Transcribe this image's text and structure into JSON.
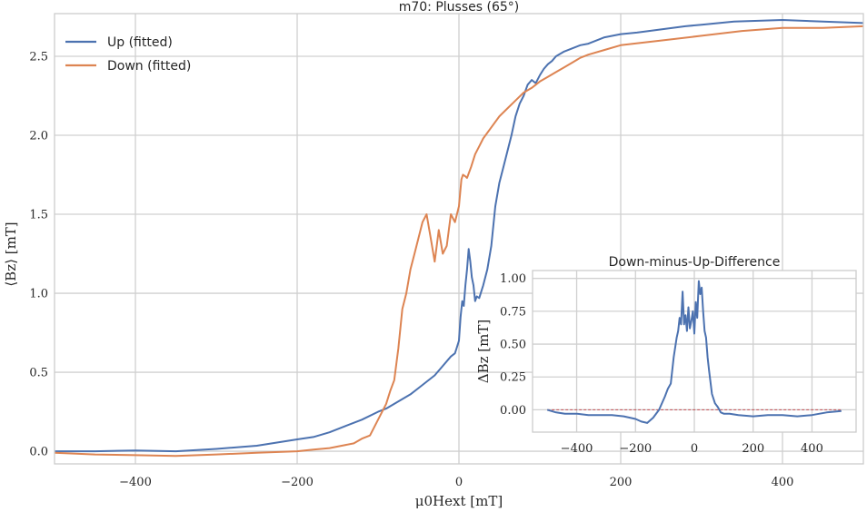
{
  "chart_data": [
    {
      "type": "line",
      "title": "m70: Plusses (65°)",
      "xlabel": "μ0Hext [mT]",
      "ylabel": "⟨Bz⟩ [mT]",
      "xlim": [
        -500,
        500
      ],
      "ylim": [
        -0.08,
        2.77
      ],
      "xticks": [
        -400,
        -200,
        0,
        200,
        400
      ],
      "yticks": [
        0.0,
        0.5,
        1.0,
        1.5,
        2.0,
        2.5
      ],
      "grid": true,
      "legend": "top-left",
      "series": [
        {
          "name": "Up (fitted)",
          "color": "#4c72b0",
          "x": [
            -500,
            -450,
            -400,
            -350,
            -300,
            -250,
            -200,
            -180,
            -160,
            -140,
            -120,
            -100,
            -90,
            -80,
            -70,
            -60,
            -50,
            -40,
            -30,
            -20,
            -10,
            -5,
            -3,
            0,
            2,
            4,
            6,
            8,
            10,
            12,
            14,
            16,
            18,
            20,
            22,
            25,
            30,
            35,
            40,
            45,
            50,
            55,
            60,
            65,
            70,
            75,
            80,
            85,
            90,
            95,
            100,
            105,
            110,
            115,
            120,
            130,
            140,
            150,
            160,
            170,
            180,
            200,
            220,
            250,
            280,
            300,
            340,
            400,
            450,
            500
          ],
          "y": [
            0.0,
            0.0,
            0.005,
            0.0,
            0.015,
            0.035,
            0.075,
            0.09,
            0.12,
            0.16,
            0.2,
            0.25,
            0.27,
            0.3,
            0.33,
            0.36,
            0.4,
            0.44,
            0.48,
            0.54,
            0.6,
            0.62,
            0.65,
            0.7,
            0.85,
            0.95,
            0.92,
            1.05,
            1.15,
            1.28,
            1.2,
            1.1,
            1.05,
            0.95,
            0.98,
            0.97,
            1.05,
            1.15,
            1.3,
            1.55,
            1.7,
            1.8,
            1.9,
            2.0,
            2.12,
            2.2,
            2.25,
            2.32,
            2.35,
            2.33,
            2.38,
            2.42,
            2.45,
            2.47,
            2.5,
            2.53,
            2.55,
            2.57,
            2.58,
            2.6,
            2.62,
            2.64,
            2.65,
            2.67,
            2.69,
            2.7,
            2.72,
            2.73,
            2.72,
            2.71
          ]
        },
        {
          "name": "Down (fitted)",
          "color": "#dd8452",
          "x": [
            -500,
            -450,
            -400,
            -350,
            -300,
            -250,
            -200,
            -180,
            -160,
            -140,
            -130,
            -120,
            -110,
            -100,
            -95,
            -90,
            -85,
            -80,
            -75,
            -70,
            -65,
            -60,
            -55,
            -50,
            -45,
            -40,
            -35,
            -30,
            -25,
            -20,
            -15,
            -10,
            -5,
            0,
            3,
            5,
            8,
            10,
            15,
            20,
            25,
            30,
            40,
            50,
            60,
            70,
            80,
            90,
            100,
            110,
            120,
            130,
            140,
            150,
            160,
            180,
            200,
            250,
            300,
            350,
            400,
            450,
            500
          ],
          "y": [
            -0.01,
            -0.02,
            -0.025,
            -0.03,
            -0.02,
            -0.01,
            0.0,
            0.01,
            0.02,
            0.04,
            0.05,
            0.08,
            0.1,
            0.2,
            0.25,
            0.3,
            0.38,
            0.45,
            0.65,
            0.9,
            1.0,
            1.15,
            1.25,
            1.35,
            1.45,
            1.5,
            1.35,
            1.2,
            1.4,
            1.25,
            1.3,
            1.5,
            1.45,
            1.55,
            1.72,
            1.75,
            1.74,
            1.73,
            1.8,
            1.88,
            1.93,
            1.98,
            2.05,
            2.12,
            2.17,
            2.22,
            2.27,
            2.3,
            2.34,
            2.37,
            2.4,
            2.43,
            2.46,
            2.49,
            2.51,
            2.54,
            2.57,
            2.6,
            2.63,
            2.66,
            2.68,
            2.68,
            2.69
          ]
        }
      ]
    },
    {
      "type": "line",
      "title": "Down-minus-Up-Difference",
      "xlabel": "",
      "ylabel": "ΔBz [mT]",
      "xlim": [
        -550,
        550
      ],
      "ylim": [
        -0.17,
        1.06
      ],
      "xticks": [
        -400,
        -200,
        0,
        200,
        400
      ],
      "yticks": [
        0.0,
        0.25,
        0.5,
        0.75,
        1.0
      ],
      "grid": true,
      "reference_line": {
        "y": 0,
        "color": "#c44e52"
      },
      "series": [
        {
          "color": "#4c72b0",
          "x": [
            -500,
            -470,
            -440,
            -400,
            -360,
            -320,
            -280,
            -240,
            -200,
            -180,
            -160,
            -140,
            -120,
            -100,
            -90,
            -80,
            -70,
            -60,
            -55,
            -50,
            -45,
            -40,
            -35,
            -30,
            -25,
            -20,
            -15,
            -10,
            -5,
            0,
            5,
            10,
            15,
            20,
            25,
            30,
            35,
            40,
            45,
            50,
            60,
            70,
            80,
            90,
            100,
            120,
            150,
            200,
            250,
            300,
            350,
            400,
            450,
            500
          ],
          "y": [
            0.0,
            -0.02,
            -0.03,
            -0.03,
            -0.04,
            -0.04,
            -0.04,
            -0.05,
            -0.07,
            -0.09,
            -0.1,
            -0.06,
            0.0,
            0.1,
            0.16,
            0.2,
            0.4,
            0.55,
            0.6,
            0.7,
            0.65,
            0.9,
            0.65,
            0.72,
            0.6,
            0.78,
            0.62,
            0.68,
            0.75,
            0.58,
            0.82,
            0.7,
            0.98,
            0.88,
            0.93,
            0.75,
            0.6,
            0.55,
            0.4,
            0.3,
            0.12,
            0.05,
            0.02,
            -0.02,
            -0.03,
            -0.03,
            -0.04,
            -0.05,
            -0.04,
            -0.04,
            -0.05,
            -0.04,
            -0.02,
            -0.01
          ]
        }
      ]
    }
  ]
}
